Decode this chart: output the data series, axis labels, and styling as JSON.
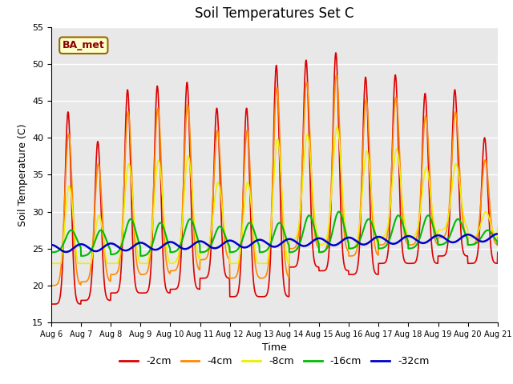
{
  "title": "Soil Temperatures Set C",
  "xlabel": "Time",
  "ylabel": "Soil Temperature (C)",
  "ylim": [
    15,
    55
  ],
  "xlim": [
    0,
    360
  ],
  "label": "BA_met",
  "bg_color": "#e8e8e8",
  "lines": {
    "-2cm": {
      "color": "#dd0000",
      "lw": 1.2
    },
    "-4cm": {
      "color": "#ff8800",
      "lw": 1.2
    },
    "-8cm": {
      "color": "#eeee00",
      "lw": 1.2
    },
    "-16cm": {
      "color": "#00bb00",
      "lw": 1.5
    },
    "-32cm": {
      "color": "#0000cc",
      "lw": 1.8
    }
  },
  "xtick_labels": [
    "Aug 6",
    "Aug 7",
    "Aug 8",
    "Aug 9",
    "Aug 10",
    "Aug 11",
    "Aug 12",
    "Aug 13",
    "Aug 14",
    "Aug 15",
    "Aug 16",
    "Aug 17",
    "Aug 18",
    "Aug 19",
    "Aug 20",
    "Aug 21"
  ],
  "xtick_positions": [
    0,
    24,
    48,
    72,
    96,
    120,
    144,
    168,
    192,
    216,
    240,
    264,
    288,
    312,
    336,
    360
  ]
}
